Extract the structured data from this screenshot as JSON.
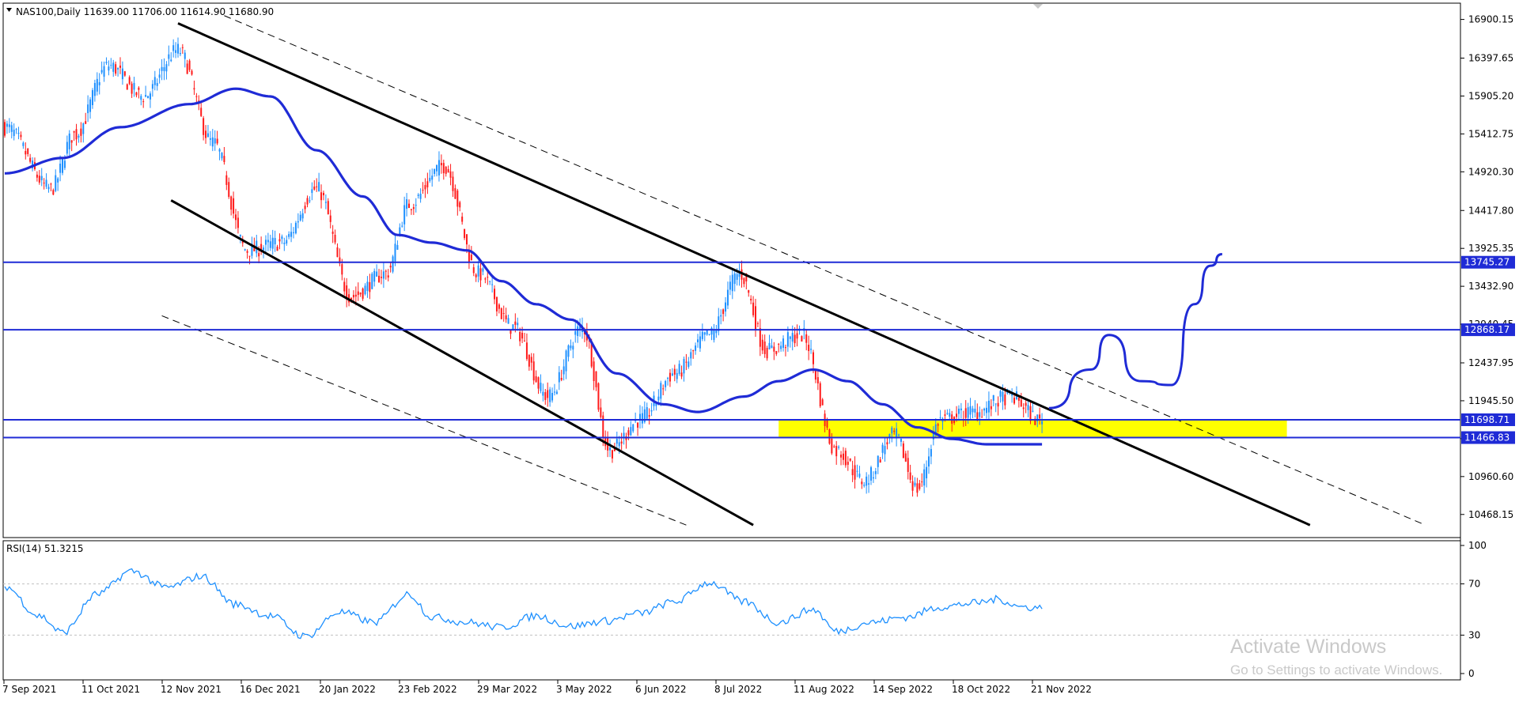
{
  "header": {
    "symbol_line": "NAS100,Daily  11639.00 11706.00 11614.90 11680.90",
    "menu_arrow_icon": "triangle-down-icon"
  },
  "colors": {
    "bull": "#1e90ff",
    "bear": "#ff1a1a",
    "ma": "#1f2bd6",
    "trend": "#000000",
    "hline": "#1f2bd6",
    "zone": "#ffff00",
    "rsi": "#1e90ff",
    "grid": "#c0c0c0"
  },
  "price_axis": {
    "min": 10250,
    "max": 17050,
    "ticks": [
      "16900.15",
      "16397.65",
      "15905.20",
      "15412.75",
      "14920.30",
      "14417.80",
      "13925.35",
      "13432.90",
      "12940.45",
      "12437.95",
      "11945.50",
      "11453.05",
      "10960.60",
      "10468.15"
    ],
    "levels": [
      {
        "label": "13745.27",
        "value": 13745.27
      },
      {
        "label": "12868.17",
        "value": 12868.17
      },
      {
        "label": "11698.71",
        "value": 11698.71
      },
      {
        "label": "11466.83",
        "value": 11466.83
      }
    ]
  },
  "time_axis": {
    "labels": [
      "7 Sep 2021",
      "11 Oct 2021",
      "12 Nov 2021",
      "16 Dec 2021",
      "20 Jan 2022",
      "23 Feb 2022",
      "29 Mar 2022",
      "3 May 2022",
      "6 Jun 2022",
      "8 Jul 2022",
      "11 Aug 2022",
      "14 Sep 2022",
      "18 Oct 2022",
      "21 Nov 2022"
    ]
  },
  "rsi_panel": {
    "label": "RSI(14) 51.3215",
    "levels": [
      "100",
      "70",
      "30",
      "0"
    ]
  },
  "watermark": {
    "line1": "Activate Windows",
    "line2": "Go to Settings to activate Windows."
  },
  "chart_data": {
    "type": "candlestick",
    "symbol": "NAS100",
    "timeframe": "Daily",
    "last_bar": {
      "open": 11639.0,
      "high": 11706.0,
      "low": 11614.9,
      "close": 11680.9
    },
    "ylim": [
      10250,
      17050
    ],
    "bars_from_start": 450,
    "close_anchors": [
      {
        "bar": 0,
        "close": 15500
      },
      {
        "bar": 20,
        "close": 14700
      },
      {
        "bar": 30,
        "close": 15400
      },
      {
        "bar": 45,
        "close": 16300
      },
      {
        "bar": 60,
        "close": 15900
      },
      {
        "bar": 75,
        "close": 16500
      },
      {
        "bar": 90,
        "close": 15300
      },
      {
        "bar": 105,
        "close": 13900
      },
      {
        "bar": 120,
        "close": 14000
      },
      {
        "bar": 135,
        "close": 14700
      },
      {
        "bar": 150,
        "close": 13300
      },
      {
        "bar": 165,
        "close": 13600
      },
      {
        "bar": 175,
        "close": 14500
      },
      {
        "bar": 190,
        "close": 15000
      },
      {
        "bar": 205,
        "close": 13600
      },
      {
        "bar": 220,
        "close": 12900
      },
      {
        "bar": 235,
        "close": 12000
      },
      {
        "bar": 250,
        "close": 12900
      },
      {
        "bar": 262,
        "close": 11300
      },
      {
        "bar": 275,
        "close": 11700
      },
      {
        "bar": 290,
        "close": 12300
      },
      {
        "bar": 305,
        "close": 12800
      },
      {
        "bar": 318,
        "close": 13600
      },
      {
        "bar": 330,
        "close": 12600
      },
      {
        "bar": 345,
        "close": 12800
      },
      {
        "bar": 360,
        "close": 11300
      },
      {
        "bar": 372,
        "close": 10900
      },
      {
        "bar": 385,
        "close": 11500
      },
      {
        "bar": 395,
        "close": 10800
      },
      {
        "bar": 405,
        "close": 11700
      },
      {
        "bar": 420,
        "close": 11800
      },
      {
        "bar": 435,
        "close": 12000
      },
      {
        "bar": 449,
        "close": 11680.9
      }
    ],
    "moving_average": {
      "anchors": [
        {
          "bar": 0,
          "value": 14900
        },
        {
          "bar": 25,
          "value": 15100
        },
        {
          "bar": 50,
          "value": 15500
        },
        {
          "bar": 80,
          "value": 15800
        },
        {
          "bar": 100,
          "value": 16000
        },
        {
          "bar": 115,
          "value": 15900
        },
        {
          "bar": 135,
          "value": 15200
        },
        {
          "bar": 155,
          "value": 14600
        },
        {
          "bar": 170,
          "value": 14100
        },
        {
          "bar": 185,
          "value": 14000
        },
        {
          "bar": 200,
          "value": 13900
        },
        {
          "bar": 215,
          "value": 13500
        },
        {
          "bar": 230,
          "value": 13200
        },
        {
          "bar": 245,
          "value": 13000
        },
        {
          "bar": 265,
          "value": 12300
        },
        {
          "bar": 285,
          "value": 11900
        },
        {
          "bar": 300,
          "value": 11800
        },
        {
          "bar": 320,
          "value": 12000
        },
        {
          "bar": 335,
          "value": 12200
        },
        {
          "bar": 350,
          "value": 12350
        },
        {
          "bar": 365,
          "value": 12200
        },
        {
          "bar": 380,
          "value": 11900
        },
        {
          "bar": 395,
          "value": 11600
        },
        {
          "bar": 410,
          "value": 11450
        },
        {
          "bar": 425,
          "value": 11380
        },
        {
          "bar": 449,
          "value": 11380
        }
      ]
    },
    "channel_upper": {
      "start": {
        "bar": 75,
        "value": 16850
      },
      "end": {
        "bar": 565,
        "value": 10330
      }
    },
    "channel_lower": {
      "start": {
        "bar": 72,
        "value": 14550
      },
      "end": {
        "bar": 324,
        "value": 10330
      }
    },
    "channel_upper_dashed": {
      "start": {
        "bar": 95,
        "value": 16950
      },
      "end": {
        "bar": 615,
        "value": 10330
      }
    },
    "channel_lower_dashed": {
      "start": {
        "bar": 68,
        "value": 13050
      },
      "end": {
        "bar": 295,
        "value": 10330
      }
    },
    "support_zone": {
      "low": 11466.83,
      "high": 11698.71,
      "start_bar": 335,
      "end_bar": 555
    },
    "projection_path": [
      {
        "bar": 452,
        "value": 11850
      },
      {
        "bar": 470,
        "value": 12350
      },
      {
        "bar": 478,
        "value": 12800
      },
      {
        "bar": 492,
        "value": 12200
      },
      {
        "bar": 505,
        "value": 12150
      },
      {
        "bar": 515,
        "value": 13200
      },
      {
        "bar": 522,
        "value": 13700
      },
      {
        "bar": 527,
        "value": 13850
      }
    ],
    "rsi": {
      "period": 14,
      "last": 51.3215,
      "ylim": [
        0,
        100
      ],
      "levels": [
        70,
        30
      ],
      "anchors": [
        {
          "bar": 0,
          "value": 68
        },
        {
          "bar": 15,
          "value": 45
        },
        {
          "bar": 25,
          "value": 32
        },
        {
          "bar": 40,
          "value": 62
        },
        {
          "bar": 55,
          "value": 80
        },
        {
          "bar": 70,
          "value": 67
        },
        {
          "bar": 85,
          "value": 76
        },
        {
          "bar": 100,
          "value": 54
        },
        {
          "bar": 115,
          "value": 45
        },
        {
          "bar": 130,
          "value": 29
        },
        {
          "bar": 145,
          "value": 48
        },
        {
          "bar": 160,
          "value": 40
        },
        {
          "bar": 175,
          "value": 62
        },
        {
          "bar": 185,
          "value": 44
        },
        {
          "bar": 200,
          "value": 40
        },
        {
          "bar": 215,
          "value": 36
        },
        {
          "bar": 230,
          "value": 45
        },
        {
          "bar": 245,
          "value": 37
        },
        {
          "bar": 260,
          "value": 41
        },
        {
          "bar": 275,
          "value": 47
        },
        {
          "bar": 290,
          "value": 56
        },
        {
          "bar": 305,
          "value": 71
        },
        {
          "bar": 320,
          "value": 56
        },
        {
          "bar": 335,
          "value": 40
        },
        {
          "bar": 350,
          "value": 50
        },
        {
          "bar": 360,
          "value": 33
        },
        {
          "bar": 375,
          "value": 40
        },
        {
          "bar": 390,
          "value": 44
        },
        {
          "bar": 405,
          "value": 52
        },
        {
          "bar": 420,
          "value": 55
        },
        {
          "bar": 430,
          "value": 58
        },
        {
          "bar": 440,
          "value": 52
        },
        {
          "bar": 449,
          "value": 51.3
        }
      ]
    }
  }
}
